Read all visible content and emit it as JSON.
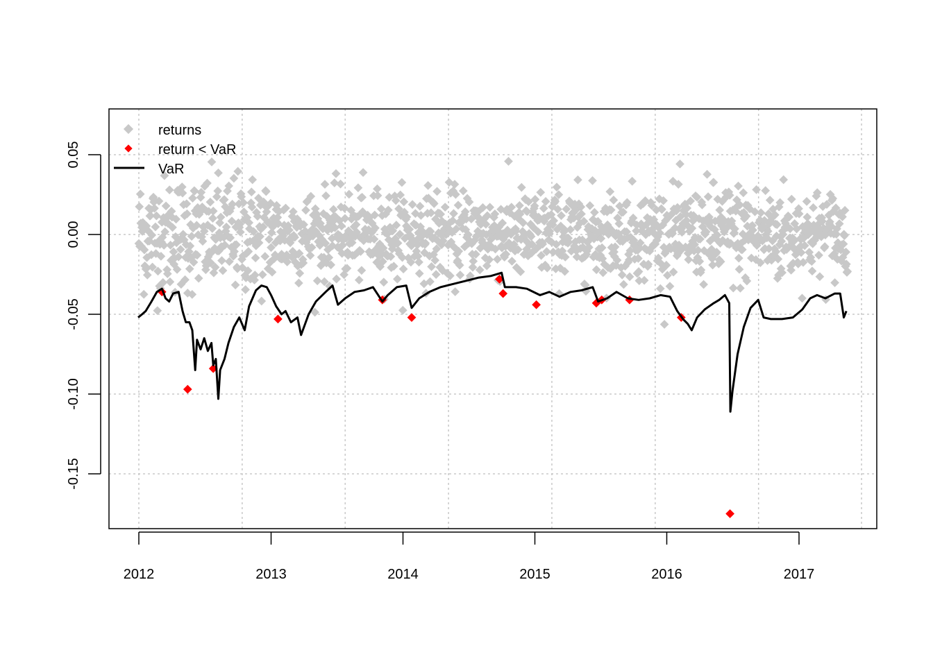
{
  "chart_data": {
    "type": "scatter",
    "title": "",
    "xlabel": "",
    "ylabel": "",
    "x_range": [
      "2011-12-01",
      "2017-08-01"
    ],
    "ylim": [
      -0.185,
      0.08
    ],
    "x_ticks": [
      {
        "date": "2012-01-01",
        "label": "2012"
      },
      {
        "date": "2013-01-01",
        "label": "2013"
      },
      {
        "date": "2014-01-01",
        "label": "2014"
      },
      {
        "date": "2015-01-01",
        "label": "2015"
      },
      {
        "date": "2016-01-01",
        "label": "2016"
      },
      {
        "date": "2017-01-01",
        "label": "2017"
      }
    ],
    "y_ticks": [
      {
        "value": 0.05,
        "label": "0.05"
      },
      {
        "value": 0.0,
        "label": "0.00"
      },
      {
        "value": -0.05,
        "label": "-0.05"
      },
      {
        "value": -0.1,
        "label": "-0.10"
      },
      {
        "value": -0.15,
        "label": "-0.15"
      }
    ],
    "grid": true,
    "grid_x_dates": [
      "2012-01-01",
      "2012-10-13",
      "2013-07-25",
      "2014-05-07",
      "2015-02-17",
      "2015-11-30",
      "2016-09-11",
      "2017-06-23"
    ],
    "legend_position": "top-left",
    "legend": [
      {
        "label": "returns",
        "marker": "diamond",
        "color": "#c8c8c8"
      },
      {
        "label": "return < VaR",
        "marker": "diamond",
        "color": "#ff0000"
      },
      {
        "label": "VaR",
        "marker": "line",
        "color": "#000000"
      }
    ],
    "colors": {
      "returns": "#c8c8c8",
      "breaches": "#ff0000",
      "var_line": "#000000",
      "grid": "#c8c8c8"
    },
    "series": [
      {
        "name": "VaR",
        "type": "line",
        "points": [
          [
            "2011-12-30",
            -0.052
          ],
          [
            "2012-01-10",
            -0.05
          ],
          [
            "2012-01-20",
            -0.048
          ],
          [
            "2012-02-05",
            -0.042
          ],
          [
            "2012-02-20",
            -0.036
          ],
          [
            "2012-03-05",
            -0.034
          ],
          [
            "2012-03-15",
            -0.04
          ],
          [
            "2012-03-25",
            -0.042
          ],
          [
            "2012-04-05",
            -0.037
          ],
          [
            "2012-04-20",
            -0.036
          ],
          [
            "2012-05-01",
            -0.048
          ],
          [
            "2012-05-10",
            -0.055
          ],
          [
            "2012-05-20",
            -0.055
          ],
          [
            "2012-05-28",
            -0.06
          ],
          [
            "2012-06-05",
            -0.085
          ],
          [
            "2012-06-10",
            -0.066
          ],
          [
            "2012-06-20",
            -0.072
          ],
          [
            "2012-06-30",
            -0.065
          ],
          [
            "2012-07-10",
            -0.073
          ],
          [
            "2012-07-20",
            -0.068
          ],
          [
            "2012-07-25",
            -0.082
          ],
          [
            "2012-08-01",
            -0.078
          ],
          [
            "2012-08-08",
            -0.103
          ],
          [
            "2012-08-13",
            -0.085
          ],
          [
            "2012-08-25",
            -0.078
          ],
          [
            "2012-09-05",
            -0.068
          ],
          [
            "2012-09-20",
            -0.058
          ],
          [
            "2012-10-05",
            -0.052
          ],
          [
            "2012-10-20",
            -0.06
          ],
          [
            "2012-11-01",
            -0.045
          ],
          [
            "2012-11-20",
            -0.035
          ],
          [
            "2012-12-05",
            -0.032
          ],
          [
            "2012-12-20",
            -0.033
          ],
          [
            "2013-01-01",
            -0.038
          ],
          [
            "2013-01-15",
            -0.045
          ],
          [
            "2013-01-30",
            -0.05
          ],
          [
            "2013-02-10",
            -0.048
          ],
          [
            "2013-02-25",
            -0.055
          ],
          [
            "2013-03-15",
            -0.052
          ],
          [
            "2013-03-25",
            -0.063
          ],
          [
            "2013-04-15",
            -0.05
          ],
          [
            "2013-05-05",
            -0.042
          ],
          [
            "2013-06-01",
            -0.036
          ],
          [
            "2013-06-20",
            -0.032
          ],
          [
            "2013-07-05",
            -0.044
          ],
          [
            "2013-07-25",
            -0.04
          ],
          [
            "2013-08-20",
            -0.036
          ],
          [
            "2013-09-15",
            -0.035
          ],
          [
            "2013-10-10",
            -0.033
          ],
          [
            "2013-11-05",
            -0.042
          ],
          [
            "2013-11-20",
            -0.038
          ],
          [
            "2013-12-15",
            -0.033
          ],
          [
            "2014-01-10",
            -0.032
          ],
          [
            "2014-01-25",
            -0.046
          ],
          [
            "2014-02-15",
            -0.04
          ],
          [
            "2014-03-15",
            -0.036
          ],
          [
            "2014-04-15",
            -0.033
          ],
          [
            "2014-05-20",
            -0.031
          ],
          [
            "2014-06-25",
            -0.029
          ],
          [
            "2014-07-30",
            -0.027
          ],
          [
            "2014-09-01",
            -0.026
          ],
          [
            "2014-10-01",
            -0.024
          ],
          [
            "2014-10-10",
            -0.033
          ],
          [
            "2014-11-10",
            -0.033
          ],
          [
            "2014-12-10",
            -0.034
          ],
          [
            "2015-01-15",
            -0.038
          ],
          [
            "2015-02-10",
            -0.036
          ],
          [
            "2015-03-10",
            -0.039
          ],
          [
            "2015-04-10",
            -0.036
          ],
          [
            "2015-05-10",
            -0.035
          ],
          [
            "2015-06-10",
            -0.033
          ],
          [
            "2015-06-25",
            -0.042
          ],
          [
            "2015-07-20",
            -0.04
          ],
          [
            "2015-08-15",
            -0.036
          ],
          [
            "2015-09-15",
            -0.04
          ],
          [
            "2015-10-15",
            -0.041
          ],
          [
            "2015-11-15",
            -0.04
          ],
          [
            "2015-12-15",
            -0.038
          ],
          [
            "2016-01-10",
            -0.039
          ],
          [
            "2016-01-30",
            -0.048
          ],
          [
            "2016-02-15",
            -0.053
          ],
          [
            "2016-02-28",
            -0.056
          ],
          [
            "2016-03-10",
            -0.06
          ],
          [
            "2016-03-25",
            -0.052
          ],
          [
            "2016-04-15",
            -0.047
          ],
          [
            "2016-05-10",
            -0.043
          ],
          [
            "2016-05-25",
            -0.041
          ],
          [
            "2016-06-10",
            -0.038
          ],
          [
            "2016-06-22",
            -0.043
          ],
          [
            "2016-06-25",
            -0.111
          ],
          [
            "2016-07-01",
            -0.098
          ],
          [
            "2016-07-15",
            -0.075
          ],
          [
            "2016-08-01",
            -0.058
          ],
          [
            "2016-08-20",
            -0.046
          ],
          [
            "2016-09-10",
            -0.041
          ],
          [
            "2016-09-25",
            -0.052
          ],
          [
            "2016-10-15",
            -0.053
          ],
          [
            "2016-11-15",
            -0.053
          ],
          [
            "2016-12-15",
            -0.052
          ],
          [
            "2017-01-10",
            -0.047
          ],
          [
            "2017-02-01",
            -0.04
          ],
          [
            "2017-02-20",
            -0.038
          ],
          [
            "2017-03-15",
            -0.04
          ],
          [
            "2017-04-10",
            -0.037
          ],
          [
            "2017-04-25",
            -0.037
          ],
          [
            "2017-05-05",
            -0.052
          ],
          [
            "2017-05-12",
            -0.048
          ]
        ]
      },
      {
        "name": "return < VaR",
        "type": "scatter",
        "points": [
          [
            "2012-05-15",
            -0.097
          ],
          [
            "2012-07-25",
            -0.084
          ],
          [
            "2013-01-20",
            -0.053
          ],
          [
            "2013-11-05",
            -0.041
          ],
          [
            "2014-01-25",
            -0.052
          ],
          [
            "2014-10-05",
            -0.037
          ],
          [
            "2015-01-05",
            -0.044
          ],
          [
            "2015-06-20",
            -0.043
          ],
          [
            "2015-07-05",
            -0.041
          ],
          [
            "2015-09-20",
            -0.041
          ],
          [
            "2016-02-10",
            -0.052
          ],
          [
            "2016-06-24",
            -0.175
          ],
          [
            "2014-09-25",
            -0.028
          ],
          [
            "2012-03-05",
            -0.036
          ]
        ]
      },
      {
        "name": "returns",
        "type": "scatter",
        "point_count": 1410,
        "start": "2012-01-01",
        "end": "2017-05-15",
        "mean": 0.0,
        "std": 0.014
      }
    ]
  }
}
